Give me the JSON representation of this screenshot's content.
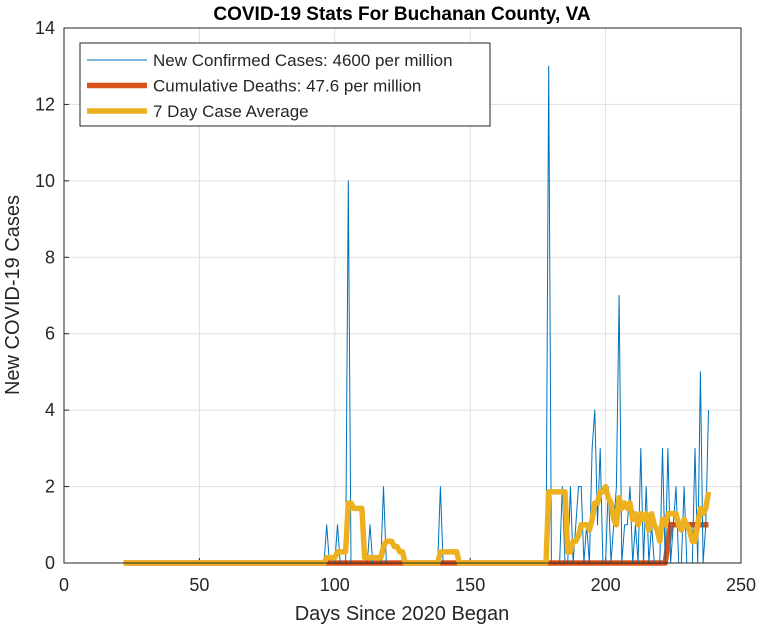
{
  "chart_data": {
    "type": "line",
    "title": "COVID-19 Stats For Buchanan County, VA",
    "xlabel": "Days Since 2020 Began",
    "ylabel": "New COVID-19 Cases",
    "xlim": [
      0,
      250
    ],
    "ylim": [
      0,
      14
    ],
    "xticks": [
      0,
      50,
      100,
      150,
      200,
      250
    ],
    "yticks": [
      0,
      2,
      4,
      6,
      8,
      10,
      12,
      14
    ],
    "grid": true,
    "legend_position": "top-left",
    "series": [
      {
        "name": "New Confirmed Cases: 4600 per million",
        "color": "#0072BD",
        "style": "thin",
        "x": [
          22,
          96,
          97,
          98,
          99,
          100,
          101,
          102,
          103,
          104,
          105,
          106,
          107,
          108,
          109,
          110,
          111,
          112,
          113,
          114,
          115,
          116,
          117,
          118,
          119,
          120,
          121,
          122,
          123,
          124,
          125,
          126,
          127,
          128,
          129,
          130,
          131,
          132,
          133,
          134,
          135,
          136,
          137,
          138,
          139,
          140,
          141,
          142,
          143,
          144,
          145,
          146,
          147,
          148,
          149,
          150,
          175,
          176,
          177,
          178,
          179,
          180,
          181,
          182,
          183,
          184,
          185,
          186,
          187,
          188,
          189,
          190,
          191,
          192,
          193,
          194,
          195,
          196,
          197,
          198,
          199,
          200,
          201,
          202,
          203,
          204,
          205,
          206,
          207,
          208,
          209,
          210,
          211,
          212,
          213,
          214,
          215,
          216,
          217,
          218,
          219,
          220,
          221,
          222,
          223,
          224,
          225,
          226,
          227,
          228,
          229,
          230,
          231,
          232,
          233,
          234,
          235,
          236,
          237,
          238
        ],
        "y": [
          0,
          0,
          1,
          0,
          0,
          0,
          1,
          0,
          0,
          0,
          10,
          0,
          0,
          0,
          0,
          0,
          0,
          0,
          1,
          0,
          0,
          0,
          0,
          2,
          0,
          0,
          0,
          0,
          0,
          0,
          0,
          0,
          0,
          0,
          0,
          0,
          0,
          0,
          0,
          0,
          0,
          0,
          0,
          0,
          2,
          0,
          0,
          0,
          0,
          0,
          0,
          0,
          0,
          0,
          0,
          0,
          0,
          0,
          0,
          0,
          13,
          0,
          0,
          0,
          0,
          2,
          0,
          0,
          2,
          0,
          1,
          2,
          2,
          0,
          1,
          0,
          3,
          4,
          1,
          3,
          0,
          0,
          2,
          0,
          1,
          2,
          7,
          0,
          1,
          1,
          2,
          0,
          1,
          0,
          3,
          0,
          2,
          0,
          1,
          0,
          0,
          0,
          3,
          0,
          3,
          0,
          1,
          2,
          0,
          0,
          2,
          0,
          0,
          0,
          3,
          0,
          5,
          0,
          1,
          4
        ]
      },
      {
        "name": "Cumulative Deaths: 47.6 per million",
        "color": "#D95319",
        "style": "thick",
        "x": [
          22,
          222,
          224,
          238
        ],
        "y": [
          0,
          0,
          1,
          1
        ]
      },
      {
        "name": "7 Day Case Average",
        "color": "#EDB120",
        "style": "thick",
        "x": [
          22,
          96,
          97,
          98,
          99,
          100,
          101,
          102,
          103,
          104,
          105,
          106,
          107,
          108,
          109,
          110,
          111,
          112,
          113,
          114,
          115,
          116,
          117,
          118,
          119,
          120,
          121,
          122,
          123,
          124,
          125,
          126,
          127,
          128,
          129,
          130,
          131,
          132,
          133,
          134,
          135,
          136,
          137,
          138,
          139,
          140,
          141,
          142,
          143,
          144,
          145,
          146,
          147,
          148,
          149,
          150,
          175,
          176,
          177,
          178,
          179,
          180,
          181,
          182,
          183,
          184,
          185,
          186,
          187,
          188,
          189,
          190,
          191,
          192,
          193,
          194,
          195,
          196,
          197,
          198,
          199,
          200,
          201,
          202,
          203,
          204,
          205,
          206,
          207,
          208,
          209,
          210,
          211,
          212,
          213,
          214,
          215,
          216,
          217,
          218,
          219,
          220,
          221,
          222,
          223,
          224,
          225,
          226,
          227,
          228,
          229,
          230,
          231,
          232,
          233,
          234,
          235,
          236,
          237,
          238
        ],
        "y": [
          0,
          0,
          0.14,
          0.14,
          0.14,
          0.14,
          0.29,
          0.29,
          0.29,
          0.29,
          1.57,
          1.57,
          1.43,
          1.43,
          1.43,
          1.43,
          0.14,
          0.14,
          0.14,
          0.14,
          0.14,
          0.14,
          0.14,
          0.43,
          0.57,
          0.57,
          0.57,
          0.43,
          0.43,
          0.29,
          0.29,
          0,
          0,
          0,
          0,
          0,
          0,
          0,
          0,
          0,
          0,
          0,
          0,
          0,
          0.29,
          0.29,
          0.29,
          0.29,
          0.29,
          0.29,
          0.29,
          0,
          0,
          0,
          0,
          0,
          0,
          0,
          0,
          0,
          1.86,
          1.86,
          1.86,
          1.86,
          1.86,
          1.86,
          1.86,
          0.29,
          0.29,
          0.57,
          0.57,
          0.71,
          1,
          1,
          1,
          0.86,
          1.14,
          1.57,
          1.57,
          1.86,
          1.86,
          2,
          1.71,
          1.57,
          1.14,
          1,
          1.71,
          1.43,
          1.57,
          1.43,
          1.57,
          1.14,
          1.29,
          1,
          1.29,
          1.14,
          1.29,
          0.86,
          1.29,
          1,
          0.86,
          0.57,
          1.14,
          1,
          1.29,
          1.29,
          1.29,
          1.29,
          1,
          0.86,
          1.14,
          1,
          0.86,
          0.57,
          0.57,
          1,
          1.43,
          1.29,
          1.43,
          1.86
        ]
      }
    ]
  }
}
